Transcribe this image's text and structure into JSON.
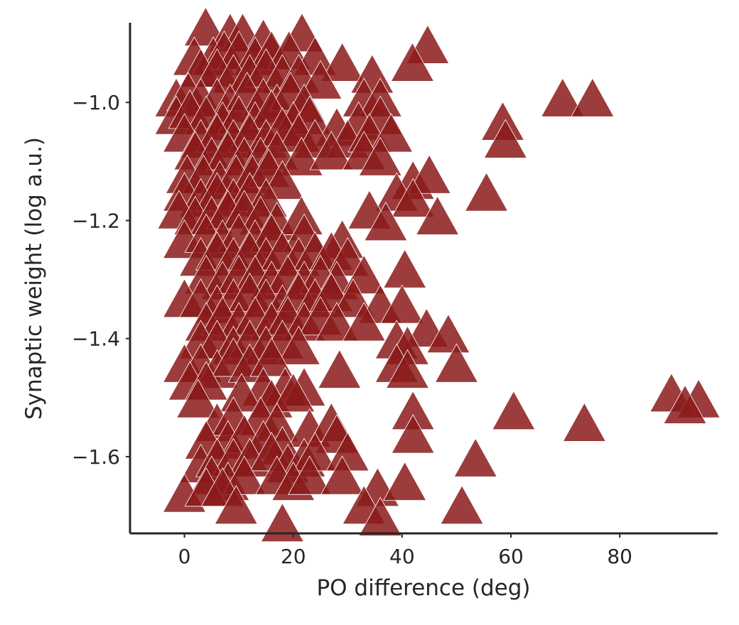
{
  "chart_data": {
    "type": "scatter",
    "title": "",
    "xlabel": "PO difference (deg)",
    "ylabel": "Synaptic weight (log a.u.)",
    "xlim": [
      -10,
      98
    ],
    "ylim": [
      -1.73,
      -0.865
    ],
    "xticks": [
      0,
      20,
      40,
      60,
      80
    ],
    "yticks": [
      -1.6,
      -1.4,
      -1.2,
      -1.0
    ],
    "xtick_labels": [
      "0",
      "20",
      "40",
      "60",
      "80"
    ],
    "ytick_labels": [
      "−1.6",
      "−1.4",
      "−1.2",
      "−1.0"
    ],
    "grid": false,
    "marker": "triangle-up",
    "color": "#8b1a1a",
    "series": [
      {
        "name": "",
        "points": [
          [
            3.9,
            -0.88
          ],
          [
            8.4,
            -0.89
          ],
          [
            10.7,
            -0.89
          ],
          [
            14.5,
            -0.9
          ],
          [
            21.6,
            -0.89
          ],
          [
            44.7,
            -0.91
          ],
          [
            1.8,
            -0.93
          ],
          [
            5.3,
            -0.93
          ],
          [
            7.3,
            -0.92
          ],
          [
            10,
            -0.92
          ],
          [
            13,
            -0.93
          ],
          [
            16,
            -0.92
          ],
          [
            19.2,
            -0.92
          ],
          [
            24,
            -0.93
          ],
          [
            29,
            -0.94
          ],
          [
            41.9,
            -0.94
          ],
          [
            3,
            -0.95
          ],
          [
            6,
            -0.95
          ],
          [
            9,
            -0.96
          ],
          [
            12,
            -0.96
          ],
          [
            15,
            -0.95
          ],
          [
            18,
            -0.96
          ],
          [
            21,
            -0.96
          ],
          [
            25,
            -0.97
          ],
          [
            34.5,
            -0.96
          ],
          [
            -1.5,
            -1
          ],
          [
            0.7,
            -0.99
          ],
          [
            3,
            -1
          ],
          [
            6,
            -1
          ],
          [
            8.4,
            -1.01
          ],
          [
            11.5,
            -0.99
          ],
          [
            14.5,
            -1
          ],
          [
            17,
            -1.01
          ],
          [
            19.5,
            -0.99
          ],
          [
            22,
            -1.01
          ],
          [
            33,
            -1
          ],
          [
            36,
            -1
          ],
          [
            69.5,
            -1
          ],
          [
            75,
            -1
          ],
          [
            -1.5,
            -1.03
          ],
          [
            1,
            -1.02
          ],
          [
            4,
            -1.03
          ],
          [
            7,
            -1.04
          ],
          [
            10,
            -1.03
          ],
          [
            13,
            -1.04
          ],
          [
            16,
            -1.02
          ],
          [
            20,
            -1.04
          ],
          [
            23,
            -1.03
          ],
          [
            28,
            -1.05
          ],
          [
            32,
            -1.04
          ],
          [
            36,
            -1.03
          ],
          [
            58.5,
            -1.04
          ],
          [
            0,
            -1.06
          ],
          [
            3,
            -1.07
          ],
          [
            6,
            -1.06
          ],
          [
            9,
            -1.07
          ],
          [
            12,
            -1.06
          ],
          [
            15,
            -1.07
          ],
          [
            18,
            -1.05
          ],
          [
            21,
            -1.06
          ],
          [
            24,
            -1.07
          ],
          [
            30,
            -1.07
          ],
          [
            34,
            -1.06
          ],
          [
            38,
            -1.06
          ],
          [
            2,
            -1.09
          ],
          [
            5,
            -1.1
          ],
          [
            8,
            -1.09
          ],
          [
            11,
            -1.1
          ],
          [
            14,
            -1.1
          ],
          [
            17,
            -1.09
          ],
          [
            21.5,
            -1.1
          ],
          [
            27,
            -1.09
          ],
          [
            33,
            -1.09
          ],
          [
            36,
            -1.1
          ],
          [
            59,
            -1.07
          ],
          [
            0.5,
            -1.13
          ],
          [
            3.5,
            -1.13
          ],
          [
            6.5,
            -1.14
          ],
          [
            9.5,
            -1.13
          ],
          [
            12.5,
            -1.13
          ],
          [
            15.5,
            -1.12
          ],
          [
            18,
            -1.14
          ],
          [
            42,
            -1.14
          ],
          [
            45,
            -1.13
          ],
          [
            0,
            -1.16
          ],
          [
            3,
            -1.17
          ],
          [
            6,
            -1.16
          ],
          [
            9,
            -1.17
          ],
          [
            12,
            -1.16
          ],
          [
            15,
            -1.17
          ],
          [
            39,
            -1.16
          ],
          [
            42,
            -1.17
          ],
          [
            55.5,
            -1.16
          ],
          [
            -1,
            -1.19
          ],
          [
            2,
            -1.2
          ],
          [
            5,
            -1.2
          ],
          [
            8,
            -1.19
          ],
          [
            11,
            -1.19
          ],
          [
            14,
            -1.2
          ],
          [
            17,
            -1.21
          ],
          [
            21.5,
            -1.2
          ],
          [
            34,
            -1.19
          ],
          [
            37,
            -1.21
          ],
          [
            46.5,
            -1.2
          ],
          [
            0,
            -1.24
          ],
          [
            4,
            -1.23
          ],
          [
            7,
            -1.24
          ],
          [
            10,
            -1.23
          ],
          [
            13,
            -1.24
          ],
          [
            16,
            -1.23
          ],
          [
            22,
            -1.23
          ],
          [
            29,
            -1.24
          ],
          [
            3,
            -1.27
          ],
          [
            6,
            -1.26
          ],
          [
            9,
            -1.27
          ],
          [
            12,
            -1.26
          ],
          [
            15,
            -1.27
          ],
          [
            18,
            -1.26
          ],
          [
            21,
            -1.27
          ],
          [
            24,
            -1.26
          ],
          [
            27,
            -1.26
          ],
          [
            30,
            -1.27
          ],
          [
            4,
            -1.3
          ],
          [
            7,
            -1.31
          ],
          [
            10,
            -1.3
          ],
          [
            13,
            -1.3
          ],
          [
            16,
            -1.31
          ],
          [
            19,
            -1.3
          ],
          [
            22,
            -1.31
          ],
          [
            25,
            -1.3
          ],
          [
            28,
            -1.31
          ],
          [
            33,
            -1.3
          ],
          [
            40.5,
            -1.29
          ],
          [
            0,
            -1.34
          ],
          [
            3,
            -1.34
          ],
          [
            6,
            -1.35
          ],
          [
            9,
            -1.34
          ],
          [
            12,
            -1.33
          ],
          [
            15,
            -1.34
          ],
          [
            18,
            -1.35
          ],
          [
            21,
            -1.33
          ],
          [
            24,
            -1.34
          ],
          [
            27,
            -1.33
          ],
          [
            31,
            -1.34
          ],
          [
            36,
            -1.35
          ],
          [
            40,
            -1.35
          ],
          [
            4,
            -1.38
          ],
          [
            7,
            -1.37
          ],
          [
            10,
            -1.38
          ],
          [
            13,
            -1.37
          ],
          [
            16,
            -1.38
          ],
          [
            19,
            -1.37
          ],
          [
            22,
            -1.38
          ],
          [
            25,
            -1.37
          ],
          [
            28,
            -1.38
          ],
          [
            33,
            -1.38
          ],
          [
            44.5,
            -1.39
          ],
          [
            48.5,
            -1.4
          ],
          [
            3,
            -1.41
          ],
          [
            6,
            -1.41
          ],
          [
            9,
            -1.42
          ],
          [
            12,
            -1.41
          ],
          [
            15,
            -1.42
          ],
          [
            18,
            -1.41
          ],
          [
            21,
            -1.42
          ],
          [
            39,
            -1.41
          ],
          [
            41,
            -1.42
          ],
          [
            0,
            -1.45
          ],
          [
            3,
            -1.45
          ],
          [
            6,
            -1.46
          ],
          [
            9,
            -1.44
          ],
          [
            12,
            -1.45
          ],
          [
            16,
            -1.44
          ],
          [
            39,
            -1.45
          ],
          [
            41,
            -1.46
          ],
          [
            50,
            -1.45
          ],
          [
            1,
            -1.48
          ],
          [
            4,
            -1.48
          ],
          [
            14.5,
            -1.49
          ],
          [
            18.5,
            -1.49
          ],
          [
            22,
            -1.49
          ],
          [
            28.5,
            -1.46
          ],
          [
            2.5,
            -1.51
          ],
          [
            10.5,
            -1.5
          ],
          [
            16,
            -1.51
          ],
          [
            20,
            -1.5
          ],
          [
            89.5,
            -1.5
          ],
          [
            94.5,
            -1.51
          ],
          [
            6,
            -1.55
          ],
          [
            9,
            -1.54
          ],
          [
            14,
            -1.54
          ],
          [
            17,
            -1.55
          ],
          [
            23,
            -1.56
          ],
          [
            27,
            -1.55
          ],
          [
            42,
            -1.53
          ],
          [
            60.5,
            -1.53
          ],
          [
            73.5,
            -1.55
          ],
          [
            92,
            -1.52
          ],
          [
            4,
            -1.58
          ],
          [
            8,
            -1.58
          ],
          [
            11,
            -1.57
          ],
          [
            14.5,
            -1.58
          ],
          [
            18,
            -1.59
          ],
          [
            28,
            -1.57
          ],
          [
            42,
            -1.57
          ],
          [
            3,
            -1.62
          ],
          [
            6,
            -1.61
          ],
          [
            9,
            -1.61
          ],
          [
            12,
            -1.61
          ],
          [
            16,
            -1.6
          ],
          [
            19,
            -1.62
          ],
          [
            22,
            -1.61
          ],
          [
            24,
            -1.6
          ],
          [
            30,
            -1.6
          ],
          [
            53.5,
            -1.61
          ],
          [
            5,
            -1.64
          ],
          [
            8,
            -1.65
          ],
          [
            11,
            -1.64
          ],
          [
            17,
            -1.64
          ],
          [
            20,
            -1.65
          ],
          [
            23,
            -1.64
          ],
          [
            29,
            -1.64
          ],
          [
            0,
            -1.67
          ],
          [
            4,
            -1.66
          ],
          [
            7,
            -1.66
          ],
          [
            35.5,
            -1.66
          ],
          [
            40.5,
            -1.65
          ],
          [
            9.5,
            -1.69
          ],
          [
            33,
            -1.69
          ],
          [
            51,
            -1.69
          ],
          [
            36,
            -1.71
          ],
          [
            18,
            -1.72
          ]
        ]
      }
    ]
  }
}
